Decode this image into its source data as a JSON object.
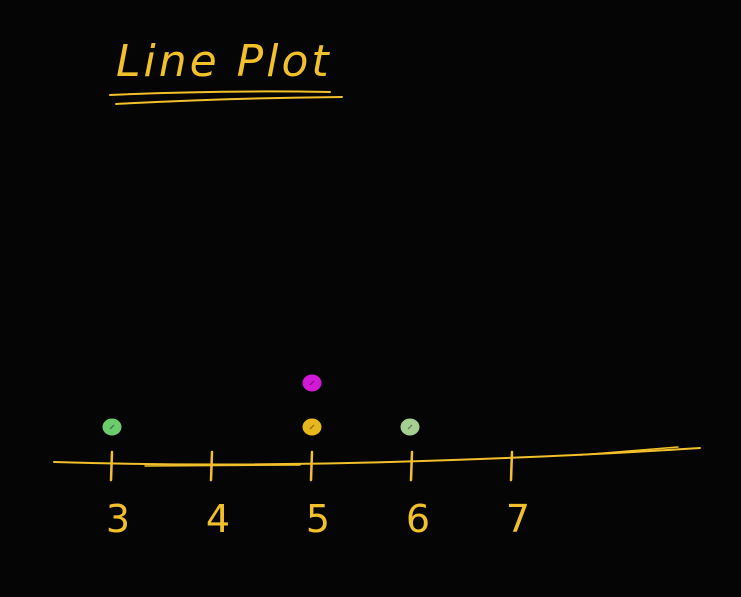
{
  "colors": {
    "background": "#050505",
    "ink": "#f2c02b"
  },
  "chart_data": {
    "type": "scatter",
    "title": "Line Plot",
    "xlabel": "",
    "ylabel": "",
    "x_ticks": [
      "3",
      "4",
      "5",
      "6",
      "7"
    ],
    "xlim": [
      3,
      7
    ],
    "points": [
      {
        "x": 3,
        "stack": 1,
        "color": "#6ccb6a"
      },
      {
        "x": 5,
        "stack": 1,
        "color": "#e8b71e"
      },
      {
        "x": 5,
        "stack": 2,
        "color": "#d21ad6"
      },
      {
        "x": 6,
        "stack": 1,
        "color": "#a7cf92"
      }
    ]
  }
}
